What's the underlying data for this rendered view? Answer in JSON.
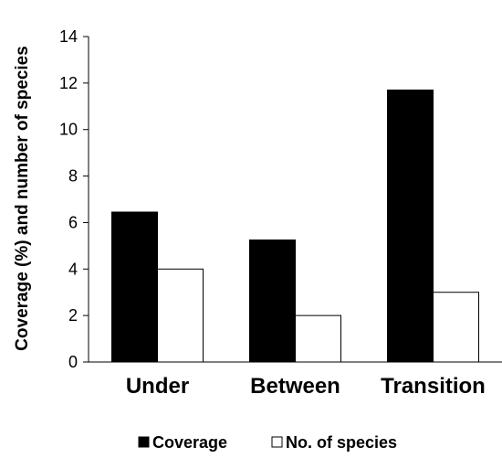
{
  "chart_data": {
    "type": "bar",
    "categories": [
      "Under",
      "Between",
      "Transition"
    ],
    "series": [
      {
        "name": "Coverage",
        "values": [
          6.45,
          5.25,
          11.7
        ],
        "color": "#000000"
      },
      {
        "name": "No. of species",
        "values": [
          4,
          2,
          3
        ],
        "color": "#ffffff"
      }
    ],
    "ylabel": "Coverage (%) and number of species",
    "xlabel": "",
    "ylim": [
      0,
      14
    ],
    "yticks": [
      "0",
      "2",
      "4",
      "6",
      "8",
      "10",
      "12",
      "14"
    ],
    "grid": false,
    "legend": "bottom"
  }
}
